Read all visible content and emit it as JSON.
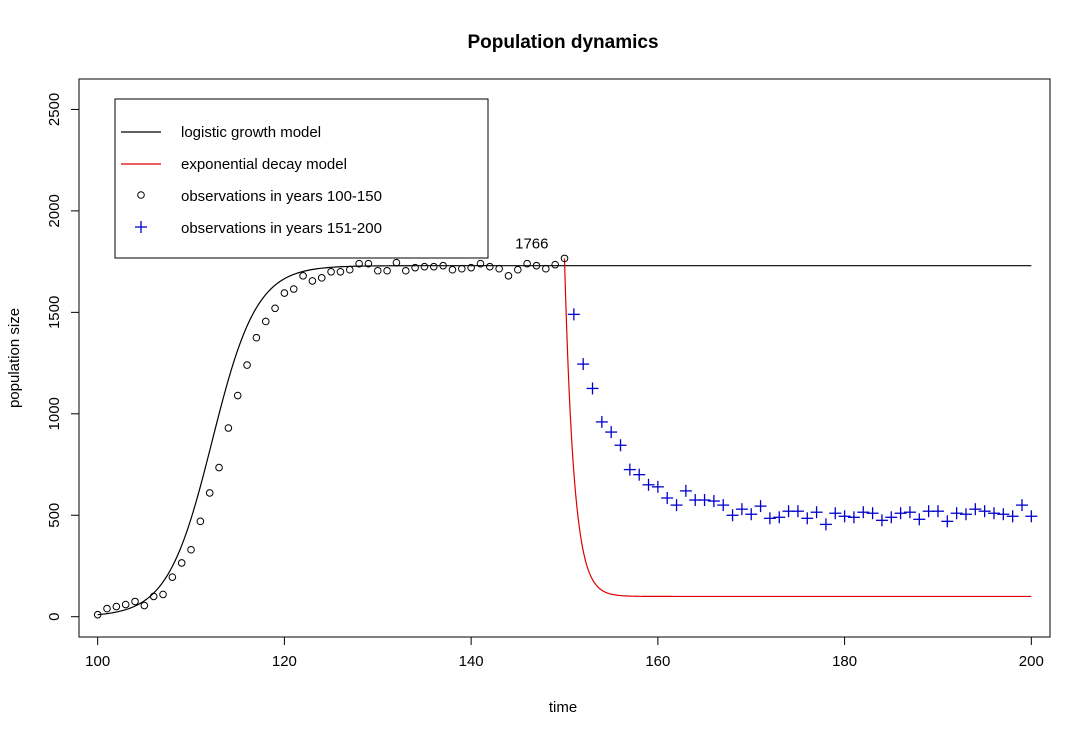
{
  "chart_data": {
    "type": "scatter",
    "title": "Population dynamics",
    "xlabel": "time",
    "ylabel": "population size",
    "xlim": [
      98,
      202
    ],
    "ylim": [
      -100,
      2650
    ],
    "x_ticks": [
      100,
      120,
      140,
      160,
      180,
      200
    ],
    "y_ticks": [
      0,
      500,
      1000,
      1500,
      2000,
      2500
    ],
    "legend_position": "top-left",
    "legend": [
      {
        "label": "logistic growth model",
        "kind": "line",
        "color": "#000000"
      },
      {
        "label": "exponential decay model",
        "kind": "line",
        "color": "#dd0000"
      },
      {
        "label": "observations in years 100-150",
        "kind": "circle",
        "color": "#000000"
      },
      {
        "label": "observations in years 151-200",
        "kind": "plus",
        "color": "#0000cc"
      }
    ],
    "annotation": {
      "text": "1766",
      "x": 150,
      "y": 1766
    },
    "logistic_model": {
      "K": 1730,
      "N0": 10,
      "r": 0.42,
      "t0": 100,
      "t_start": 100,
      "t_end": 200,
      "color": "#000000"
    },
    "decay_model": {
      "start": 1766,
      "floor": 100,
      "k": 1.0,
      "t0": 150,
      "t_end": 200,
      "color": "#dd0000"
    },
    "series": [
      {
        "name": "observations in years 100-150",
        "marker": "circle",
        "color": "#000000",
        "x": [
          100,
          101,
          102,
          103,
          104,
          105,
          106,
          107,
          108,
          109,
          110,
          111,
          112,
          113,
          114,
          115,
          116,
          117,
          118,
          119,
          120,
          121,
          122,
          123,
          124,
          125,
          126,
          127,
          128,
          129,
          130,
          131,
          132,
          133,
          134,
          135,
          136,
          137,
          138,
          139,
          140,
          141,
          142,
          143,
          144,
          145,
          146,
          147,
          148,
          149,
          150
        ],
        "y": [
          10,
          40,
          50,
          60,
          75,
          55,
          100,
          110,
          195,
          265,
          330,
          470,
          610,
          735,
          930,
          1090,
          1240,
          1375,
          1455,
          1520,
          1595,
          1615,
          1680,
          1655,
          1670,
          1700,
          1700,
          1710,
          1740,
          1740,
          1705,
          1705,
          1745,
          1705,
          1720,
          1725,
          1725,
          1730,
          1710,
          1715,
          1720,
          1740,
          1725,
          1715,
          1680,
          1710,
          1740,
          1730,
          1715,
          1735,
          1766
        ]
      },
      {
        "name": "observations in years 151-200",
        "marker": "plus",
        "color": "#0000cc",
        "x": [
          151,
          152,
          153,
          154,
          155,
          156,
          157,
          158,
          159,
          160,
          161,
          162,
          163,
          164,
          165,
          166,
          167,
          168,
          169,
          170,
          171,
          172,
          173,
          174,
          175,
          176,
          177,
          178,
          179,
          180,
          181,
          182,
          183,
          184,
          185,
          186,
          187,
          188,
          189,
          190,
          191,
          192,
          193,
          194,
          195,
          196,
          197,
          198,
          199,
          200
        ],
        "y": [
          1490,
          1245,
          1125,
          960,
          910,
          845,
          725,
          700,
          650,
          640,
          585,
          550,
          620,
          575,
          575,
          570,
          550,
          500,
          530,
          505,
          545,
          485,
          490,
          520,
          520,
          485,
          515,
          455,
          510,
          495,
          490,
          515,
          510,
          475,
          490,
          510,
          515,
          480,
          520,
          520,
          470,
          510,
          505,
          530,
          520,
          510,
          505,
          495,
          550,
          495
        ]
      }
    ]
  }
}
